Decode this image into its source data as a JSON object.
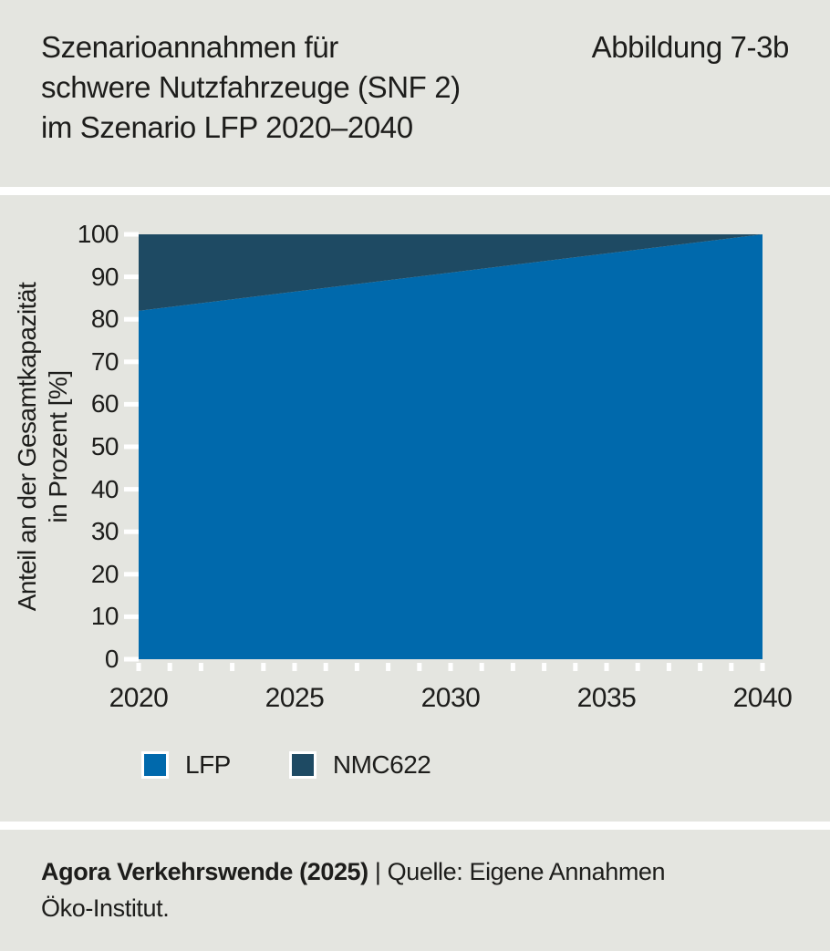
{
  "header": {
    "title_line1": "Szenarioannahmen für",
    "title_line2": "schwere Nutzfahrzeuge (SNF 2)",
    "title_line3": "im Szenario LFP 2020–2040",
    "figure_label": "Abbildung 7-3b"
  },
  "chart_data": {
    "type": "area",
    "stacked": true,
    "x": [
      2020,
      2025,
      2030,
      2035,
      2040
    ],
    "x_range": [
      2020,
      2040
    ],
    "x_minor_step": 1,
    "xticks": [
      2020,
      2025,
      2030,
      2035,
      2040
    ],
    "ylim": [
      0,
      100
    ],
    "yticks": [
      0,
      10,
      20,
      30,
      40,
      50,
      60,
      70,
      80,
      90,
      100
    ],
    "ylabel_line1": "Anteil an der Gesamtkapazität",
    "ylabel_line2": "in Prozent [%]",
    "grid": false,
    "legend_position": "bottom-left",
    "series": [
      {
        "name": "LFP",
        "color": "#0069ac",
        "values": [
          82,
          86.5,
          91,
          95.5,
          100
        ]
      },
      {
        "name": "NMC622",
        "color": "#1e4a63",
        "values": [
          18,
          13.5,
          9,
          4.5,
          0
        ]
      }
    ]
  },
  "footer": {
    "bold": "Agora Verkehrswende (2025)",
    "separator": "|",
    "line1_rest": "Quelle: Eigene Annahmen",
    "line2": "Öko-Institut."
  },
  "colors": {
    "section_background": "#e4e5e0",
    "gap": "#ffffff",
    "text": "#1d1d1b",
    "tick": "#ffffff"
  }
}
